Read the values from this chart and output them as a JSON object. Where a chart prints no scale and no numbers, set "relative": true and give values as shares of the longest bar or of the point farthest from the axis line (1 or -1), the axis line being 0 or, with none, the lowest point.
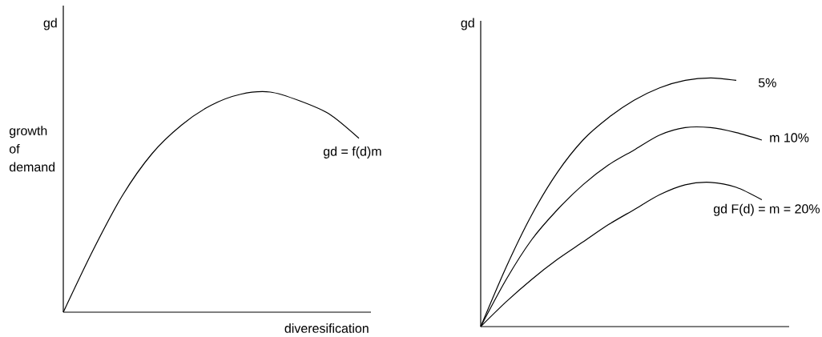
{
  "chart_data": [
    {
      "type": "line",
      "relative": true,
      "ylabel": "gd",
      "xlabel": "diveresification",
      "annotations": [
        "growth of demand"
      ],
      "categories": [
        null,
        null,
        null,
        null,
        null,
        null,
        null,
        null,
        null,
        null,
        null
      ],
      "series": [
        {
          "name": "gd = f(d)m",
          "color": "#000000",
          "values": [
            0,
            0.28,
            0.53,
            0.72,
            0.85,
            0.94,
            0.99,
            1,
            0.96,
            0.9,
            0.79
          ]
        }
      ]
    },
    {
      "type": "line",
      "relative": true,
      "ylabel": "gd",
      "categories": [
        null,
        null,
        null,
        null,
        null,
        null,
        null,
        null,
        null,
        null,
        null,
        null
      ],
      "series": [
        {
          "name": "5%",
          "color": "#000000",
          "values": [
            0,
            0.24,
            0.45,
            0.62,
            0.75,
            0.84,
            0.91,
            0.96,
            0.99,
            1,
            0.99,
            null
          ]
        },
        {
          "name": "m 10%",
          "color": "#000000",
          "values": [
            0,
            0.19,
            0.35,
            0.47,
            0.57,
            0.65,
            0.71,
            0.77,
            0.8,
            0.8,
            0.78,
            0.75
          ]
        },
        {
          "name": "gd F(d) = m = 20%",
          "color": "#000000",
          "values": [
            0,
            0.1,
            0.19,
            0.27,
            0.34,
            0.41,
            0.47,
            0.53,
            0.57,
            0.58,
            0.56,
            0.51
          ]
        }
      ]
    }
  ]
}
